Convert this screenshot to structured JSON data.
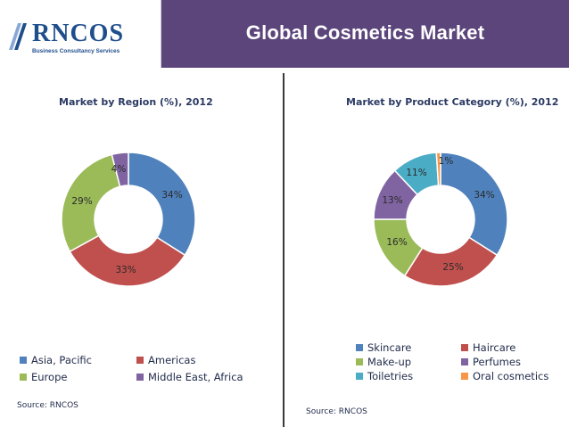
{
  "header": {
    "logo_text": "RNCOS",
    "logo_subtitle": "Business Consultancy Services",
    "title": "Global Cosmetics Market"
  },
  "chart_data": [
    {
      "type": "pie",
      "title": "Market by Region (%), 2012",
      "categories": [
        "Asia, Pacific",
        "Americas",
        "Europe",
        "Middle East, Africa"
      ],
      "values": [
        34,
        33,
        29,
        4
      ],
      "labels": [
        "34%",
        "33%",
        "29%",
        "4%"
      ],
      "colors": [
        "#4f81bd",
        "#c0504d",
        "#9bbb59",
        "#8064a2"
      ],
      "legend": "bottom",
      "source": "Source: RNCOS"
    },
    {
      "type": "pie",
      "title": "Market by Product Category (%), 2012",
      "categories": [
        "Skincare",
        "Haircare",
        "Make-up",
        "Perfumes",
        "Toiletries",
        "Oral cosmetics"
      ],
      "values": [
        34,
        25,
        16,
        13,
        11,
        1
      ],
      "labels": [
        "34%",
        "25%",
        "16%",
        "13%",
        "11%",
        "1%"
      ],
      "colors": [
        "#4f81bd",
        "#c0504d",
        "#9bbb59",
        "#8064a2",
        "#4bacc6",
        "#f79646"
      ],
      "legend": "bottom",
      "source": "Source: RNCOS"
    }
  ]
}
